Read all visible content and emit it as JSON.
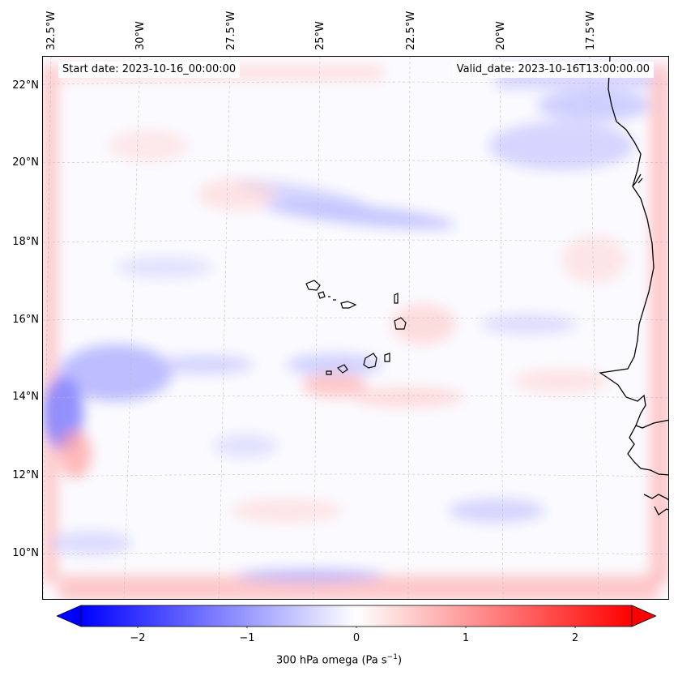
{
  "header": {
    "start_date": "Start date: 2023-10-16_00:00:00",
    "valid_date": "Valid_date: 2023-10-16T13:00:00.00"
  },
  "map": {
    "longitude_labels": [
      "32.5°W",
      "30°W",
      "27.5°W",
      "25°W",
      "22.5°W",
      "20°W",
      "17.5°W"
    ],
    "latitude_labels": [
      "22°N",
      "20°N",
      "18°N",
      "16°N",
      "14°N",
      "12°N",
      "10°N"
    ],
    "features": [
      "Cape Verde islands",
      "West African coastline"
    ]
  },
  "colorbar": {
    "label_main": "300 hPa omega (Pa s",
    "label_exp": "−1",
    "label_end": ")",
    "ticks": [
      "−2",
      "−1",
      "0",
      "1",
      "2"
    ],
    "vmin": -2.7,
    "vmax": 2.7,
    "colormap": "bwr",
    "low_color": "#0000ff",
    "mid_color": "#ffffff",
    "high_color": "#ff0000"
  }
}
